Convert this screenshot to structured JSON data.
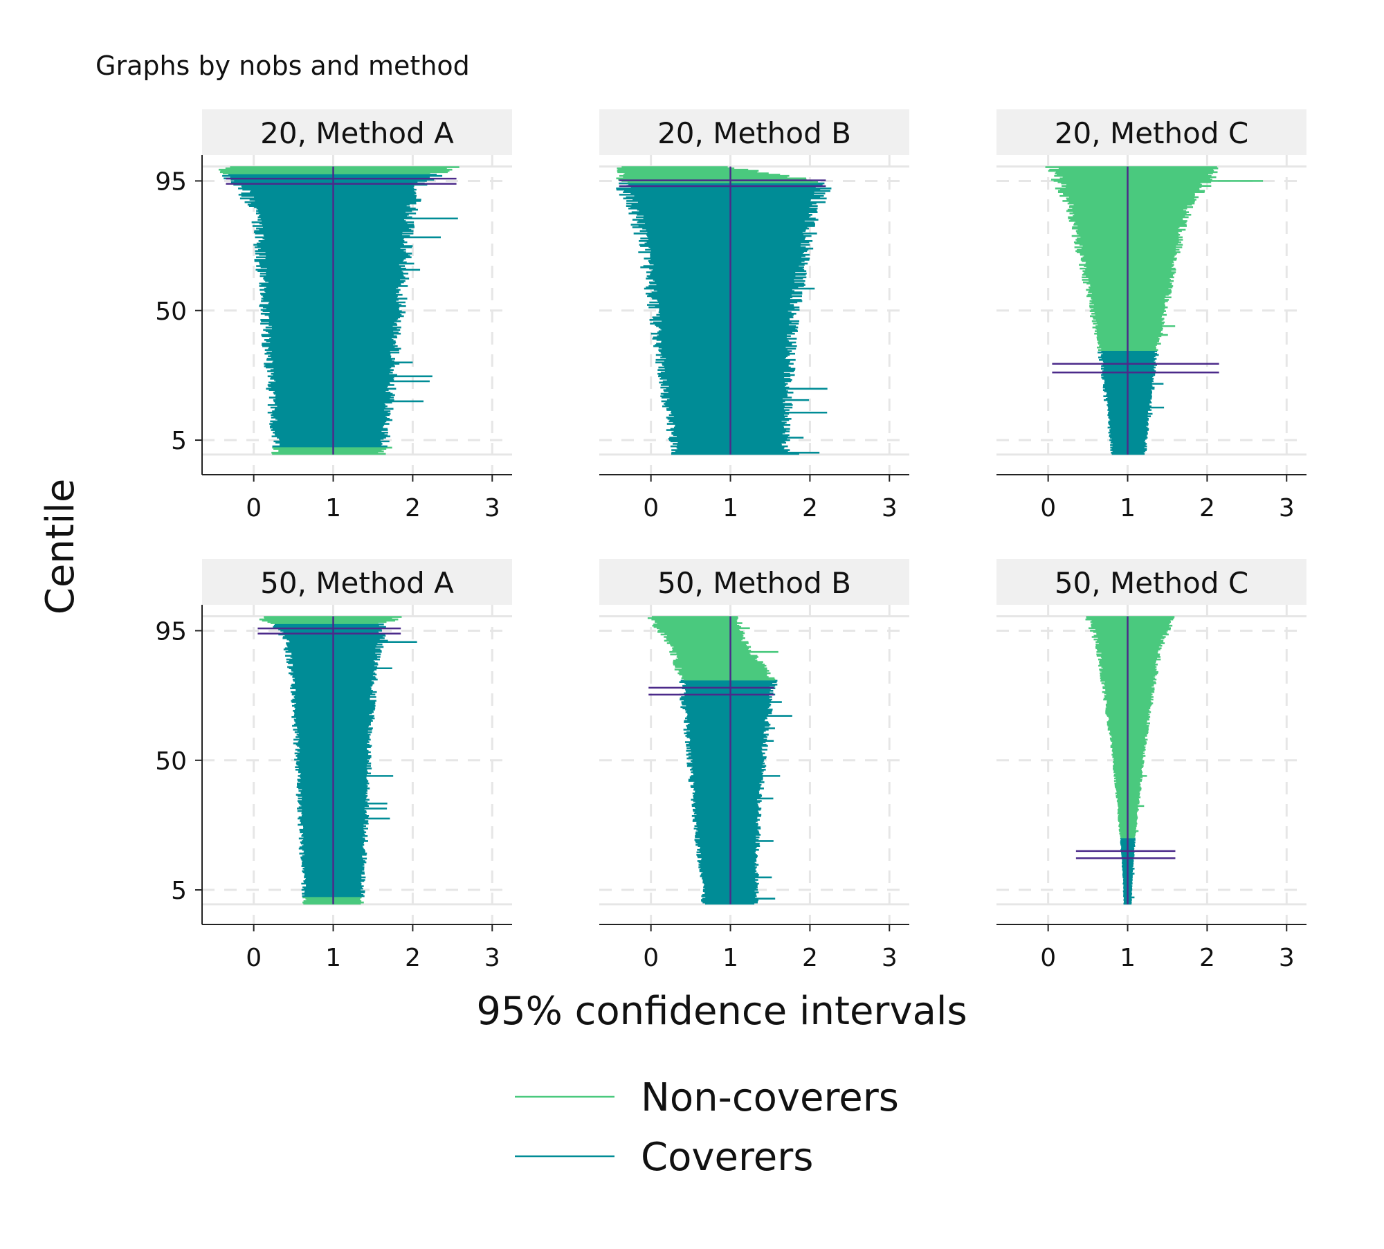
{
  "note": "Graphs by nobs and method",
  "chart_data": {
    "type": "zipplot",
    "xlabel": "95% confidence intervals",
    "ylabel": "Centile",
    "xlim": [
      -0.65,
      3.25
    ],
    "x_ticks": [
      0,
      1,
      2,
      3
    ],
    "ylim": [
      -7,
      104
    ],
    "y_ticks": [
      5,
      50,
      95
    ],
    "reference_value": 1,
    "grid": true,
    "legend": {
      "position": "bottom",
      "items": [
        {
          "label": "Non-coverers",
          "color": "#4ac97e"
        },
        {
          "label": "Coverers",
          "color": "#008c96"
        }
      ]
    },
    "colors": {
      "non_coverers": "#4ac97e",
      "coverers": "#008c96",
      "reference": "#4b2a8a"
    },
    "panels": [
      {
        "title": "20, Method A",
        "nobs": 20,
        "method": "Method A",
        "noncoverer_percent_low": 2.5,
        "noncoverer_percent_high": 2.5,
        "coverage_ci_percent": [
          94.0,
          95.8
        ],
        "coverage_ci_x": [
          -0.35,
          2.55
        ],
        "profile": [
          {
            "centile": 0,
            "lower": 0.28,
            "upper": 1.62
          },
          {
            "centile": 5,
            "lower": 0.27,
            "upper": 1.65
          },
          {
            "centile": 20,
            "lower": 0.22,
            "upper": 1.72
          },
          {
            "centile": 50,
            "lower": 0.14,
            "upper": 1.84
          },
          {
            "centile": 80,
            "lower": 0.04,
            "upper": 1.95
          },
          {
            "centile": 92,
            "lower": -0.12,
            "upper": 2.05
          },
          {
            "centile": 97.5,
            "lower": -0.35,
            "upper": 2.3
          },
          {
            "centile": 100,
            "lower": -0.35,
            "upper": 2.55
          }
        ]
      },
      {
        "title": "20, Method B",
        "nobs": 20,
        "method": "Method B",
        "noncoverer_percent_low": 0,
        "noncoverer_percent_high": 5.5,
        "coverage_ci_percent": [
          93.2,
          95.2
        ],
        "coverage_ci_x": [
          -0.4,
          2.2
        ],
        "profile": [
          {
            "centile": 0,
            "lower": 0.3,
            "upper": 1.7
          },
          {
            "centile": 5,
            "lower": 0.28,
            "upper": 1.7
          },
          {
            "centile": 20,
            "lower": 0.18,
            "upper": 1.72
          },
          {
            "centile": 50,
            "lower": 0.04,
            "upper": 1.8
          },
          {
            "centile": 70,
            "lower": -0.08,
            "upper": 1.95
          },
          {
            "centile": 85,
            "lower": -0.2,
            "upper": 2.05
          },
          {
            "centile": 94.5,
            "lower": -0.38,
            "upper": 2.2
          },
          {
            "centile": 100,
            "lower": -0.4,
            "upper": 0.95
          }
        ]
      },
      {
        "title": "20, Method C",
        "nobs": 20,
        "method": "Method C",
        "noncoverer_percent_low": 0,
        "noncoverer_percent_high": 64,
        "coverage_ci_percent": [
          28.5,
          31.5
        ],
        "coverage_ci_x": [
          0.05,
          2.15
        ],
        "profile": [
          {
            "centile": 0,
            "lower": 0.8,
            "upper": 1.22
          },
          {
            "centile": 5,
            "lower": 0.79,
            "upper": 1.23
          },
          {
            "centile": 20,
            "lower": 0.72,
            "upper": 1.3
          },
          {
            "centile": 36,
            "lower": 0.65,
            "upper": 1.37
          },
          {
            "centile": 50,
            "lower": 0.55,
            "upper": 1.48
          },
          {
            "centile": 70,
            "lower": 0.4,
            "upper": 1.62
          },
          {
            "centile": 85,
            "lower": 0.28,
            "upper": 1.75
          },
          {
            "centile": 100,
            "lower": 0.05,
            "upper": 2.15
          }
        ]
      },
      {
        "title": "50, Method A",
        "nobs": 50,
        "method": "Method A",
        "noncoverer_percent_low": 2.5,
        "noncoverer_percent_high": 2.5,
        "coverage_ci_percent": [
          94.0,
          95.8
        ],
        "coverage_ci_x": [
          0.05,
          1.85
        ],
        "profile": [
          {
            "centile": 0,
            "lower": 0.64,
            "upper": 1.36
          },
          {
            "centile": 5,
            "lower": 0.63,
            "upper": 1.37
          },
          {
            "centile": 20,
            "lower": 0.6,
            "upper": 1.4
          },
          {
            "centile": 50,
            "lower": 0.55,
            "upper": 1.45
          },
          {
            "centile": 80,
            "lower": 0.48,
            "upper": 1.52
          },
          {
            "centile": 92,
            "lower": 0.4,
            "upper": 1.6
          },
          {
            "centile": 97.5,
            "lower": 0.22,
            "upper": 1.62
          },
          {
            "centile": 100,
            "lower": 0.05,
            "upper": 1.85
          }
        ]
      },
      {
        "title": "50, Method B",
        "nobs": 50,
        "method": "Method B",
        "noncoverer_percent_low": 0,
        "noncoverer_percent_high": 22,
        "coverage_ci_percent": [
          72.8,
          75.2
        ],
        "coverage_ci_x": [
          -0.03,
          1.55
        ],
        "profile": [
          {
            "centile": 0,
            "lower": 0.66,
            "upper": 1.32
          },
          {
            "centile": 5,
            "lower": 0.65,
            "upper": 1.33
          },
          {
            "centile": 30,
            "lower": 0.55,
            "upper": 1.35
          },
          {
            "centile": 60,
            "lower": 0.45,
            "upper": 1.45
          },
          {
            "centile": 78,
            "lower": 0.38,
            "upper": 1.55
          },
          {
            "centile": 90,
            "lower": 0.25,
            "upper": 1.2
          },
          {
            "centile": 100,
            "lower": -0.03,
            "upper": 1.08
          }
        ]
      },
      {
        "title": "50, Method C",
        "nobs": 50,
        "method": "Method C",
        "noncoverer_percent_low": 0,
        "noncoverer_percent_high": 77,
        "coverage_ci_percent": [
          16.0,
          18.5
        ],
        "coverage_ci_x": [
          0.35,
          1.6
        ],
        "profile": [
          {
            "centile": 0,
            "lower": 0.95,
            "upper": 1.05
          },
          {
            "centile": 10,
            "lower": 0.94,
            "upper": 1.06
          },
          {
            "centile": 25,
            "lower": 0.9,
            "upper": 1.1
          },
          {
            "centile": 50,
            "lower": 0.82,
            "upper": 1.2
          },
          {
            "centile": 75,
            "lower": 0.7,
            "upper": 1.32
          },
          {
            "centile": 90,
            "lower": 0.62,
            "upper": 1.42
          },
          {
            "centile": 100,
            "lower": 0.5,
            "upper": 1.58
          }
        ]
      }
    ]
  }
}
